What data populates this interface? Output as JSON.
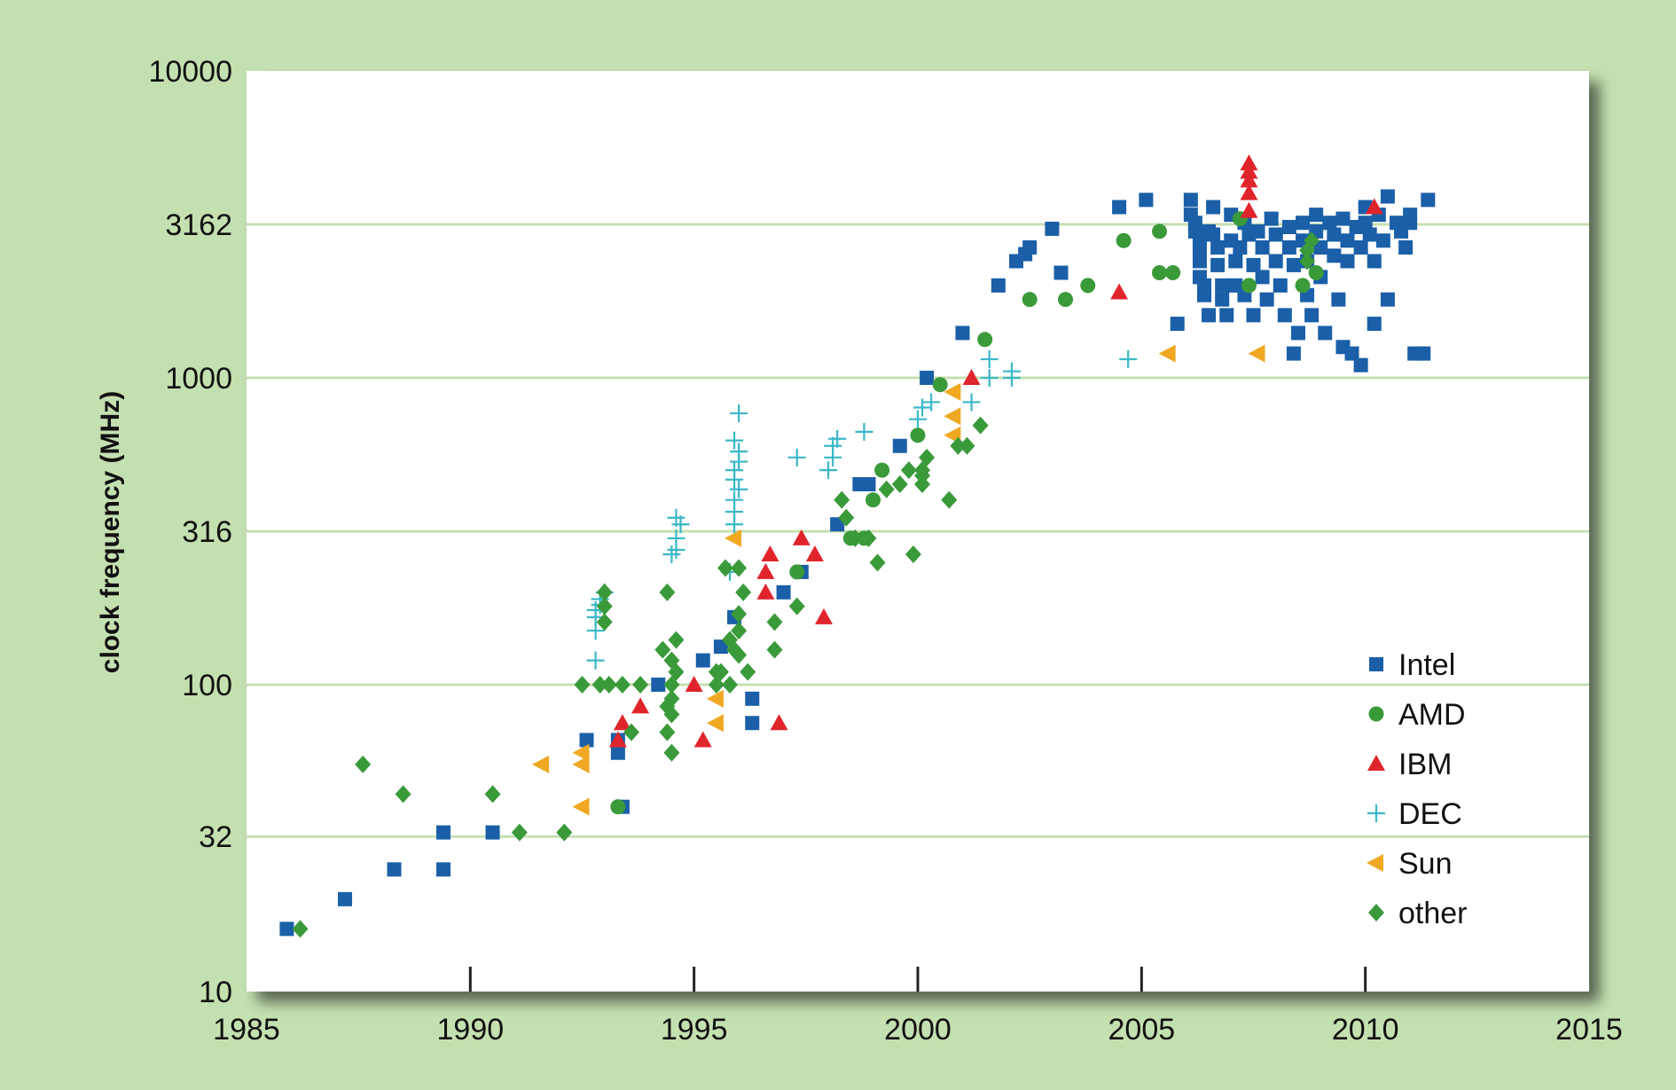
{
  "chart_data": {
    "type": "scatter",
    "title": "",
    "xlabel": "",
    "ylabel": "clock frequency (MHz)",
    "xlim": [
      1985,
      2015
    ],
    "ylim": [
      10,
      10000
    ],
    "yscale": "log",
    "grid": "horizontal",
    "legend_position": "bottom-right",
    "xticks": [
      1985,
      1990,
      1995,
      2000,
      2005,
      2010,
      2015
    ],
    "yticks": [
      10,
      32,
      100,
      316,
      1000,
      3162,
      10000
    ],
    "colors": {
      "background": "#c5e0b0",
      "plot_background": "#ffffff",
      "gridline": "#c5e0b0",
      "intel": "#1a5fa8",
      "amd": "#3a9a3a",
      "ibm": "#e0242c",
      "dec": "#3ab8c8",
      "sun": "#f0a822",
      "other": "#3a9a3a"
    },
    "series": [
      {
        "name": "Intel",
        "marker": "square",
        "color": "#1a5fa8",
        "points": [
          [
            1985.9,
            16
          ],
          [
            1987.2,
            20
          ],
          [
            1988.3,
            25
          ],
          [
            1989.4,
            25
          ],
          [
            1989.4,
            33
          ],
          [
            1990.5,
            33
          ],
          [
            1992.6,
            66
          ],
          [
            1993.3,
            60
          ],
          [
            1993.3,
            66
          ],
          [
            1993.4,
            40
          ],
          [
            1994.2,
            100
          ],
          [
            1995.2,
            120
          ],
          [
            1995.6,
            133
          ],
          [
            1995.9,
            166
          ],
          [
            1996.3,
            90
          ],
          [
            1996.3,
            75
          ],
          [
            1997.0,
            200
          ],
          [
            1997.4,
            233
          ],
          [
            1998.2,
            333
          ],
          [
            1998.7,
            450
          ],
          [
            1998.9,
            450
          ],
          [
            1999.6,
            600
          ],
          [
            2000.2,
            1000
          ],
          [
            2001.0,
            1400
          ],
          [
            2001.8,
            2000
          ],
          [
            2002.2,
            2400
          ],
          [
            2002.4,
            2530
          ],
          [
            2002.5,
            2660
          ],
          [
            2003.0,
            3060
          ],
          [
            2003.2,
            2200
          ],
          [
            2004.5,
            3600
          ],
          [
            2005.1,
            3800
          ],
          [
            2005.8,
            1500
          ],
          [
            2006.1,
            3800
          ],
          [
            2006.1,
            3400
          ],
          [
            2006.2,
            3200
          ],
          [
            2006.2,
            3000
          ],
          [
            2006.3,
            2800
          ],
          [
            2006.3,
            2660
          ],
          [
            2006.3,
            2400
          ],
          [
            2006.3,
            2130
          ],
          [
            2006.4,
            2000
          ],
          [
            2006.4,
            1860
          ],
          [
            2006.5,
            1600
          ],
          [
            2006.5,
            3000
          ],
          [
            2006.6,
            3600
          ],
          [
            2006.6,
            2930
          ],
          [
            2006.7,
            2660
          ],
          [
            2006.7,
            2330
          ],
          [
            2006.8,
            2000
          ],
          [
            2006.8,
            1800
          ],
          [
            2006.9,
            1600
          ],
          [
            2007.0,
            3400
          ],
          [
            2007.0,
            2800
          ],
          [
            2007.1,
            2400
          ],
          [
            2007.1,
            2000
          ],
          [
            2007.2,
            2660
          ],
          [
            2007.3,
            3200
          ],
          [
            2007.3,
            1860
          ],
          [
            2007.4,
            2930
          ],
          [
            2007.5,
            2330
          ],
          [
            2007.5,
            1600
          ],
          [
            2007.6,
            3000
          ],
          [
            2007.7,
            2660
          ],
          [
            2007.7,
            2130
          ],
          [
            2007.8,
            1800
          ],
          [
            2007.9,
            3300
          ],
          [
            2008.0,
            2930
          ],
          [
            2008.0,
            2400
          ],
          [
            2008.1,
            2000
          ],
          [
            2008.2,
            1600
          ],
          [
            2008.3,
            3100
          ],
          [
            2008.3,
            2660
          ],
          [
            2008.4,
            2330
          ],
          [
            2008.4,
            1200
          ],
          [
            2008.5,
            1400
          ],
          [
            2008.6,
            3200
          ],
          [
            2008.6,
            2800
          ],
          [
            2008.7,
            2400
          ],
          [
            2008.7,
            1860
          ],
          [
            2008.8,
            1600
          ],
          [
            2008.9,
            3400
          ],
          [
            2008.9,
            3000
          ],
          [
            2009.0,
            2660
          ],
          [
            2009.0,
            2130
          ],
          [
            2009.1,
            1400
          ],
          [
            2009.2,
            3200
          ],
          [
            2009.3,
            2930
          ],
          [
            2009.3,
            2500
          ],
          [
            2009.4,
            1800
          ],
          [
            2009.5,
            3300
          ],
          [
            2009.5,
            1260
          ],
          [
            2009.6,
            2800
          ],
          [
            2009.6,
            2400
          ],
          [
            2009.7,
            1200
          ],
          [
            2009.8,
            3100
          ],
          [
            2009.9,
            2660
          ],
          [
            2009.9,
            1100
          ],
          [
            2010.0,
            3600
          ],
          [
            2010.0,
            3200
          ],
          [
            2010.1,
            2930
          ],
          [
            2010.2,
            2400
          ],
          [
            2010.2,
            1500
          ],
          [
            2010.3,
            3400
          ],
          [
            2010.4,
            2800
          ],
          [
            2010.5,
            3900
          ],
          [
            2010.5,
            1800
          ],
          [
            2010.7,
            3200
          ],
          [
            2010.8,
            3000
          ],
          [
            2010.9,
            2660
          ],
          [
            2011.0,
            3400
          ],
          [
            2011.0,
            3200
          ],
          [
            2011.1,
            1200
          ],
          [
            2011.3,
            1200
          ],
          [
            2011.4,
            3800
          ]
        ]
      },
      {
        "name": "AMD",
        "marker": "circle",
        "color": "#3a9a3a",
        "points": [
          [
            1993.3,
            40
          ],
          [
            1997.3,
            233
          ],
          [
            1998.5,
            300
          ],
          [
            1998.8,
            300
          ],
          [
            1999.0,
            400
          ],
          [
            1999.2,
            500
          ],
          [
            2000.0,
            650
          ],
          [
            2000.5,
            950
          ],
          [
            2001.5,
            1333
          ],
          [
            2002.5,
            1800
          ],
          [
            2003.3,
            1800
          ],
          [
            2003.8,
            2000
          ],
          [
            2004.6,
            2800
          ],
          [
            2005.4,
            3000
          ],
          [
            2005.4,
            2200
          ],
          [
            2005.7,
            2200
          ],
          [
            2007.2,
            3300
          ],
          [
            2007.4,
            2000
          ],
          [
            2008.6,
            2000
          ],
          [
            2008.9,
            2200
          ]
        ]
      },
      {
        "name": "IBM",
        "marker": "triangle",
        "color": "#e0242c",
        "points": [
          [
            1993.3,
            66
          ],
          [
            1993.4,
            75
          ],
          [
            1993.8,
            85
          ],
          [
            1995.0,
            100
          ],
          [
            1995.2,
            66
          ],
          [
            1996.6,
            200
          ],
          [
            1996.6,
            233
          ],
          [
            1996.7,
            266
          ],
          [
            1996.9,
            75
          ],
          [
            1997.4,
            300
          ],
          [
            1997.7,
            266
          ],
          [
            1997.9,
            166
          ],
          [
            2001.2,
            1000
          ],
          [
            2004.5,
            1900
          ],
          [
            2007.4,
            3500
          ],
          [
            2007.4,
            4000
          ],
          [
            2007.4,
            4400
          ],
          [
            2007.4,
            4700
          ],
          [
            2007.4,
            5000
          ],
          [
            2010.2,
            3600
          ]
        ]
      },
      {
        "name": "DEC",
        "marker": "plus",
        "color": "#3ab8c8",
        "points": [
          [
            1992.8,
            150
          ],
          [
            1992.8,
            166
          ],
          [
            1992.8,
            175
          ],
          [
            1992.9,
            182
          ],
          [
            1992.9,
            190
          ],
          [
            1993.0,
            200
          ],
          [
            1992.8,
            120
          ],
          [
            1994.5,
            266
          ],
          [
            1994.6,
            275
          ],
          [
            1994.6,
            300
          ],
          [
            1994.7,
            333
          ],
          [
            1994.6,
            350
          ],
          [
            1995.8,
            233
          ],
          [
            1995.9,
            333
          ],
          [
            1995.9,
            366
          ],
          [
            1995.9,
            400
          ],
          [
            1996.0,
            433
          ],
          [
            1995.9,
            466
          ],
          [
            1995.9,
            500
          ],
          [
            1996.0,
            533
          ],
          [
            1996.0,
            575
          ],
          [
            1995.9,
            625
          ],
          [
            1996.0,
            766
          ],
          [
            1997.3,
            550
          ],
          [
            1998.0,
            500
          ],
          [
            1998.1,
            550
          ],
          [
            1998.1,
            600
          ],
          [
            1998.2,
            633
          ],
          [
            1998.8,
            667
          ],
          [
            2000.0,
            733
          ],
          [
            2000.1,
            800
          ],
          [
            2000.3,
            833
          ],
          [
            2001.2,
            833
          ],
          [
            2001.6,
            1000
          ],
          [
            2001.6,
            1150
          ],
          [
            2002.1,
            1000
          ],
          [
            2002.1,
            1050
          ],
          [
            2004.7,
            1150
          ]
        ]
      },
      {
        "name": "Sun",
        "marker": "left-triangle",
        "color": "#f0a822",
        "points": [
          [
            1991.6,
            55
          ],
          [
            1992.5,
            55
          ],
          [
            1992.5,
            60
          ],
          [
            1992.5,
            40
          ],
          [
            1995.5,
            90
          ],
          [
            1995.5,
            75
          ],
          [
            1995.9,
            300
          ],
          [
            2000.8,
            900
          ],
          [
            2000.8,
            750
          ],
          [
            2000.8,
            650
          ],
          [
            2005.6,
            1200
          ],
          [
            2007.6,
            1200
          ]
        ]
      },
      {
        "name": "other",
        "marker": "diamond",
        "color": "#3a9a3a",
        "points": [
          [
            1986.2,
            16
          ],
          [
            1987.6,
            55
          ],
          [
            1988.5,
            44
          ],
          [
            1990.5,
            44
          ],
          [
            1991.1,
            33
          ],
          [
            1992.1,
            33
          ],
          [
            1992.5,
            100
          ],
          [
            1992.9,
            100
          ],
          [
            1993.0,
            160
          ],
          [
            1993.0,
            180
          ],
          [
            1993.0,
            200
          ],
          [
            1993.1,
            100
          ],
          [
            1993.4,
            100
          ],
          [
            1993.6,
            70
          ],
          [
            1993.8,
            100
          ],
          [
            1994.3,
            130
          ],
          [
            1994.4,
            85
          ],
          [
            1994.4,
            70
          ],
          [
            1994.5,
            120
          ],
          [
            1994.5,
            90
          ],
          [
            1994.5,
            100
          ],
          [
            1994.5,
            60
          ],
          [
            1994.5,
            80
          ],
          [
            1994.6,
            110
          ],
          [
            1994.6,
            140
          ],
          [
            1994.4,
            200
          ],
          [
            1995.5,
            110
          ],
          [
            1995.5,
            100
          ],
          [
            1995.6,
            110
          ],
          [
            1995.7,
            240
          ],
          [
            1995.8,
            100
          ],
          [
            1995.8,
            140
          ],
          [
            1995.9,
            130
          ],
          [
            1996.0,
            240
          ],
          [
            1996.0,
            150
          ],
          [
            1996.0,
            170
          ],
          [
            1996.0,
            125
          ],
          [
            1996.1,
            200
          ],
          [
            1996.2,
            110
          ],
          [
            1996.8,
            130
          ],
          [
            1996.8,
            160
          ],
          [
            1997.3,
            180
          ],
          [
            1998.3,
            400
          ],
          [
            1998.4,
            350
          ],
          [
            1998.6,
            300
          ],
          [
            1998.9,
            300
          ],
          [
            1999.1,
            250
          ],
          [
            1999.3,
            433
          ],
          [
            1999.6,
            450
          ],
          [
            1999.8,
            500
          ],
          [
            1999.9,
            266
          ],
          [
            2000.1,
            450
          ],
          [
            2000.1,
            480
          ],
          [
            2000.1,
            500
          ],
          [
            2000.2,
            550
          ],
          [
            2000.7,
            400
          ],
          [
            2000.9,
            600
          ],
          [
            2001.1,
            600
          ],
          [
            2001.4,
            700
          ],
          [
            2008.7,
            2400
          ],
          [
            2008.7,
            2600
          ],
          [
            2008.8,
            2800
          ]
        ]
      }
    ]
  }
}
